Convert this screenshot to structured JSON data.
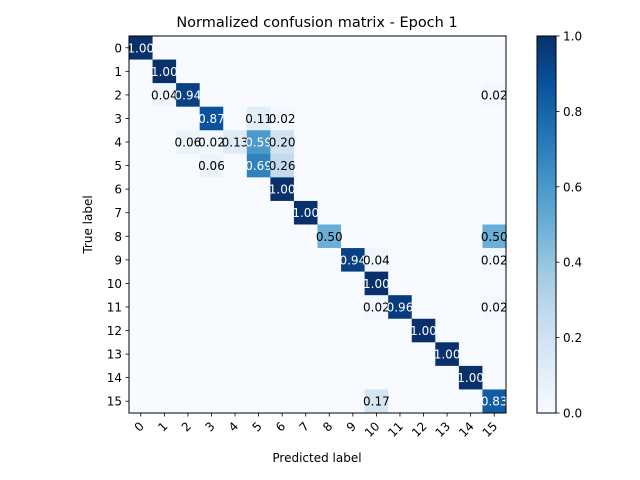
{
  "chart_data": {
    "type": "heatmap",
    "title": "Normalized confusion matrix - Epoch 1",
    "xlabel": "Predicted label",
    "ylabel": "True label",
    "x_categories": [
      "0",
      "1",
      "2",
      "3",
      "4",
      "5",
      "6",
      "7",
      "8",
      "9",
      "10",
      "11",
      "12",
      "13",
      "14",
      "15"
    ],
    "y_categories": [
      "0",
      "1",
      "2",
      "3",
      "4",
      "5",
      "6",
      "7",
      "8",
      "9",
      "10",
      "11",
      "12",
      "13",
      "14",
      "15"
    ],
    "colormap": "Blues",
    "colorbar": {
      "min": 0.0,
      "max": 1.0,
      "ticks": [
        "0.0",
        "0.2",
        "0.4",
        "0.6",
        "0.8",
        "1.0"
      ]
    },
    "values": [
      [
        1.0,
        0,
        0,
        0,
        0,
        0,
        0,
        0,
        0,
        0,
        0,
        0,
        0,
        0,
        0,
        0
      ],
      [
        0,
        1.0,
        0,
        0,
        0,
        0,
        0,
        0,
        0,
        0,
        0,
        0,
        0,
        0,
        0,
        0
      ],
      [
        0,
        0.04,
        0.94,
        0,
        0,
        0,
        0,
        0,
        0,
        0,
        0,
        0,
        0,
        0,
        0,
        0.02
      ],
      [
        0,
        0,
        0,
        0.87,
        0,
        0.11,
        0.02,
        0,
        0,
        0,
        0,
        0,
        0,
        0,
        0,
        0
      ],
      [
        0,
        0,
        0.06,
        0.02,
        0.13,
        0.59,
        0.2,
        0,
        0,
        0,
        0,
        0,
        0,
        0,
        0,
        0
      ],
      [
        0,
        0,
        0,
        0.06,
        0,
        0.69,
        0.26,
        0,
        0,
        0,
        0,
        0,
        0,
        0,
        0,
        0
      ],
      [
        0,
        0,
        0,
        0,
        0,
        0,
        1.0,
        0,
        0,
        0,
        0,
        0,
        0,
        0,
        0,
        0
      ],
      [
        0,
        0,
        0,
        0,
        0,
        0,
        0,
        1.0,
        0,
        0,
        0,
        0,
        0,
        0,
        0,
        0
      ],
      [
        0,
        0,
        0,
        0,
        0,
        0,
        0,
        0,
        0.5,
        0,
        0,
        0,
        0,
        0,
        0,
        0.5
      ],
      [
        0,
        0,
        0,
        0,
        0,
        0,
        0,
        0,
        0,
        0.94,
        0.04,
        0,
        0,
        0,
        0,
        0.02
      ],
      [
        0,
        0,
        0,
        0,
        0,
        0,
        0,
        0,
        0,
        0,
        1.0,
        0,
        0,
        0,
        0,
        0
      ],
      [
        0,
        0,
        0,
        0,
        0,
        0,
        0,
        0,
        0,
        0,
        0.02,
        0.96,
        0,
        0,
        0,
        0.02
      ],
      [
        0,
        0,
        0,
        0,
        0,
        0,
        0,
        0,
        0,
        0,
        0,
        0,
        1.0,
        0,
        0,
        0
      ],
      [
        0,
        0,
        0,
        0,
        0,
        0,
        0,
        0,
        0,
        0,
        0,
        0,
        0,
        1.0,
        0,
        0
      ],
      [
        0,
        0,
        0,
        0,
        0,
        0,
        0,
        0,
        0,
        0,
        0,
        0,
        0,
        0,
        1.0,
        0
      ],
      [
        0,
        0,
        0,
        0,
        0,
        0,
        0,
        0,
        0,
        0,
        0.17,
        0,
        0,
        0,
        0,
        0.83
      ]
    ]
  }
}
